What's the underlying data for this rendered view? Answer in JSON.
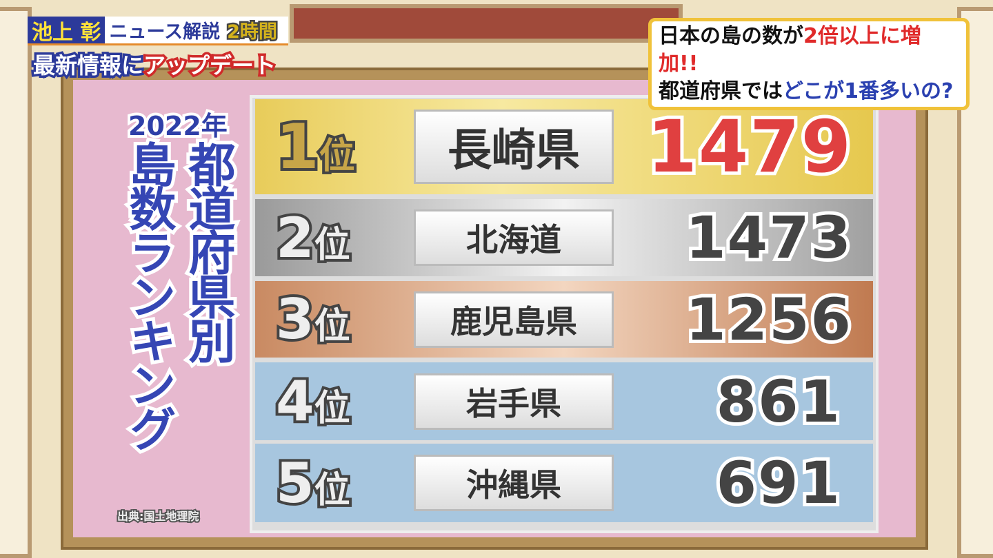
{
  "banner_left": {
    "host": "池上 彰",
    "show": "ニュース解説",
    "duration": "2時間",
    "line2_white": "最新情報に",
    "line2_red": "アップデート"
  },
  "banner_right": {
    "line1_black": "日本の島の数が",
    "line1_red": "2倍以上に増加!!",
    "line2_black": "都道府県では",
    "line2_blue": "どこが1番多いの?"
  },
  "board": {
    "year": "2022年",
    "title_col1": "都道府県別",
    "title_col2": "島数ランキング",
    "source": "出典:国土地理院"
  },
  "ranking": [
    {
      "rank": "1",
      "suffix": "位",
      "prefecture": "長崎県",
      "islands": "1479"
    },
    {
      "rank": "2",
      "suffix": "位",
      "prefecture": "北海道",
      "islands": "1473"
    },
    {
      "rank": "3",
      "suffix": "位",
      "prefecture": "鹿児島県",
      "islands": "1256"
    },
    {
      "rank": "4",
      "suffix": "位",
      "prefecture": "岩手県",
      "islands": "861"
    },
    {
      "rank": "5",
      "suffix": "位",
      "prefecture": "沖縄県",
      "islands": "691"
    }
  ],
  "colors": {
    "gold": "#e8cc5a",
    "silver": "#b4b4b4",
    "bronze": "#c98a62",
    "blue": "#a7c6df",
    "first_number": "#e04040",
    "title_blue": "#3546b4"
  }
}
